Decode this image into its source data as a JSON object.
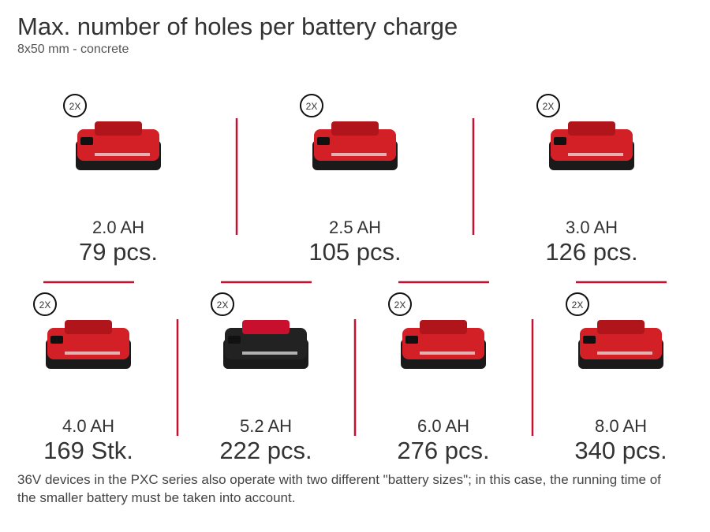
{
  "header": {
    "title": "Max. number of holes per battery charge",
    "subtitle": "8x50 mm - concrete"
  },
  "items": [
    {
      "badge": "2X",
      "capacity": "2.0 AH",
      "count": "79 pcs."
    },
    {
      "badge": "2X",
      "capacity": "2.5 AH",
      "count": "105 pcs."
    },
    {
      "badge": "2X",
      "capacity": "3.0 AH",
      "count": "126 pcs."
    },
    {
      "badge": "2X",
      "capacity": "4.0 AH",
      "count": "169 Stk."
    },
    {
      "badge": "2X",
      "capacity": "5.2 AH",
      "count": "222 pcs."
    },
    {
      "badge": "2X",
      "capacity": "6.0 AH",
      "count": "276 pcs."
    },
    {
      "badge": "2X",
      "capacity": "8.0 AH",
      "count": "340 pcs."
    }
  ],
  "footnote": "36V devices in the PXC series also operate with two different \"battery sizes\"; in this case, the running time of the smaller battery must be taken into account."
}
